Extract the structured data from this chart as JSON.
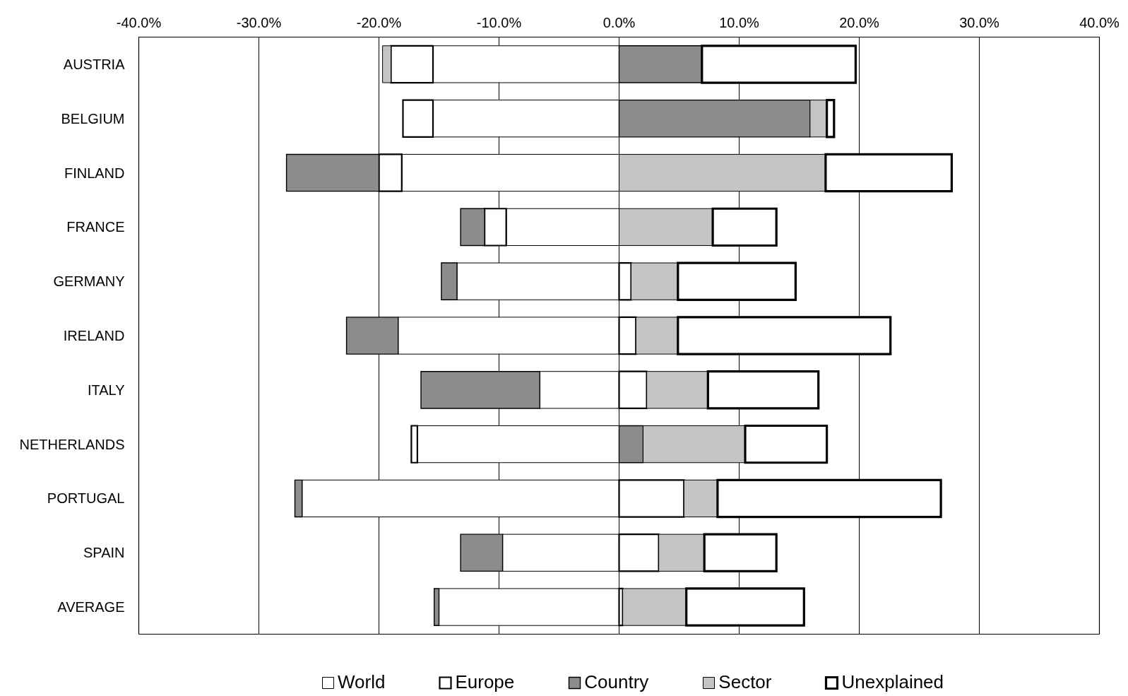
{
  "chart_data": {
    "type": "bar",
    "orientation": "horizontal",
    "stacked": true,
    "categories": [
      "AUSTRIA",
      "BELGIUM",
      "FINLAND",
      "FRANCE",
      "GERMANY",
      "IRELAND",
      "ITALY",
      "NETHERLANDS",
      "PORTUGAL",
      "SPAIN",
      "AVERAGE"
    ],
    "series": [
      {
        "name": "World",
        "color": "#ffffff",
        "values": [
          -15.5,
          -15.5,
          -18.1,
          -9.4,
          -13.5,
          -18.4,
          -6.6,
          -16.8,
          -26.4,
          -9.7,
          -15.0
        ]
      },
      {
        "name": "Europe",
        "color": "#ffffff",
        "values": [
          -3.5,
          -2.5,
          -1.9,
          -1.8,
          1.0,
          1.4,
          2.3,
          -0.5,
          5.4,
          3.3,
          0.3
        ]
      },
      {
        "name": "Country",
        "color": "#8c8c8c",
        "values": [
          6.9,
          15.9,
          -7.7,
          -2.0,
          -1.3,
          -4.3,
          -9.9,
          2.0,
          -0.6,
          -3.5,
          -0.4
        ]
      },
      {
        "name": "Sector",
        "color": "#c4c4c4",
        "values": [
          -0.7,
          1.4,
          17.2,
          7.8,
          3.9,
          3.5,
          5.1,
          8.5,
          2.8,
          3.8,
          5.3
        ]
      },
      {
        "name": "Unexplained",
        "color": "#ffffff",
        "values": [
          12.8,
          0.6,
          10.5,
          5.3,
          9.8,
          17.7,
          9.2,
          6.8,
          18.6,
          6.0,
          9.8
        ]
      }
    ],
    "xlim": [
      -40,
      40
    ],
    "xticks": [
      {
        "value": -40,
        "label": "-40.0%"
      },
      {
        "value": -30,
        "label": "-30.0%"
      },
      {
        "value": -20,
        "label": "-20.0%"
      },
      {
        "value": -10,
        "label": "-10.0%"
      },
      {
        "value": 0,
        "label": "0.0%"
      },
      {
        "value": 10,
        "label": "10.0%"
      },
      {
        "value": 20,
        "label": "20.0%"
      },
      {
        "value": 30,
        "label": "30.0%"
      },
      {
        "value": 40,
        "label": "40.0%"
      }
    ],
    "grid": "x",
    "legend": "bottom"
  }
}
